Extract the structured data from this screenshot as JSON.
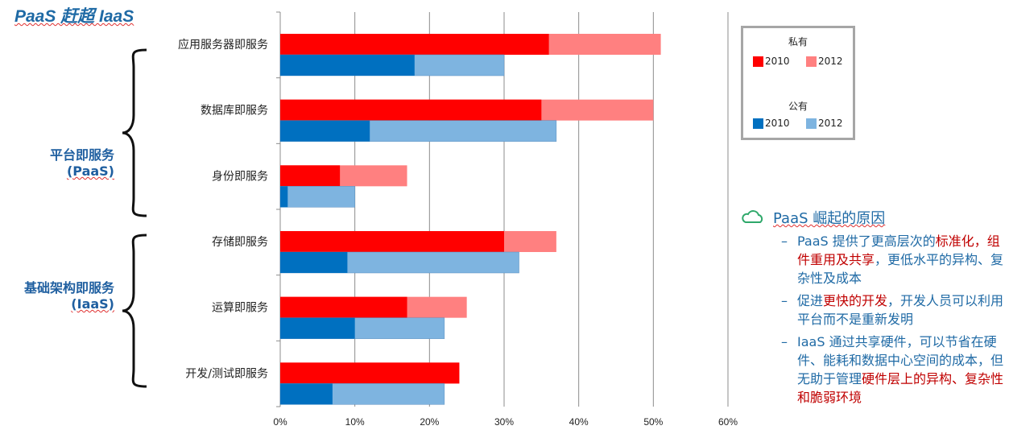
{
  "title": "PaaS 赶超 IaaS",
  "groups": {
    "paas": {
      "name": "平台即服务",
      "abbr": "(PaaS)"
    },
    "iaas": {
      "name": "基础架构即服务",
      "abbr": "(IaaS)"
    }
  },
  "legend": {
    "private_title": "私有",
    "public_title": "公有",
    "year_2010": "2010",
    "year_2012": "2012"
  },
  "colors": {
    "private_2010": "#ff0000",
    "private_2012": "#ff8080",
    "public_2010": "#0070c0",
    "public_2012": "#7eb4e0"
  },
  "notes": {
    "heading": "PaaS 崛起的原因",
    "items": [
      [
        {
          "t": "PaaS 提供了更高层次的",
          "hl": false
        },
        {
          "t": "标准化，组件重用及共享",
          "hl": true
        },
        {
          "t": "，更低水平的异构、复杂性及成本",
          "hl": false
        }
      ],
      [
        {
          "t": "促进",
          "hl": false
        },
        {
          "t": "更快的开发",
          "hl": true
        },
        {
          "t": "，开发人员可以利用平台而不是重新发明",
          "hl": false
        }
      ],
      [
        {
          "t": "IaaS 通过共享硬件，可以节省在硬件、能耗和数据中心空间的成本，但无助于管理",
          "hl": false
        },
        {
          "t": "硬件层上的异构、复杂性和脆弱环境",
          "hl": true
        }
      ]
    ]
  },
  "chart_data": {
    "type": "bar",
    "orientation": "horizontal",
    "categories": [
      "应用服务器即服务",
      "数据库即服务",
      "身份即服务",
      "存储即服务",
      "运算即服务",
      "开发/测试即服务"
    ],
    "series": [
      {
        "name": "私有 2010",
        "values": [
          36,
          35,
          8,
          30,
          17,
          24
        ]
      },
      {
        "name": "私有 2012",
        "values": [
          51,
          50,
          17,
          37,
          25,
          24
        ]
      },
      {
        "name": "公有 2010",
        "values": [
          18,
          12,
          1,
          9,
          10,
          7
        ]
      },
      {
        "name": "公有 2012",
        "values": [
          30,
          37,
          10,
          32,
          22,
          22
        ]
      }
    ],
    "xlim": [
      0,
      60
    ],
    "xticks": [
      "0%",
      "10%",
      "20%",
      "30%",
      "40%",
      "50%",
      "60%"
    ],
    "grid": true,
    "legend": "top-right"
  }
}
